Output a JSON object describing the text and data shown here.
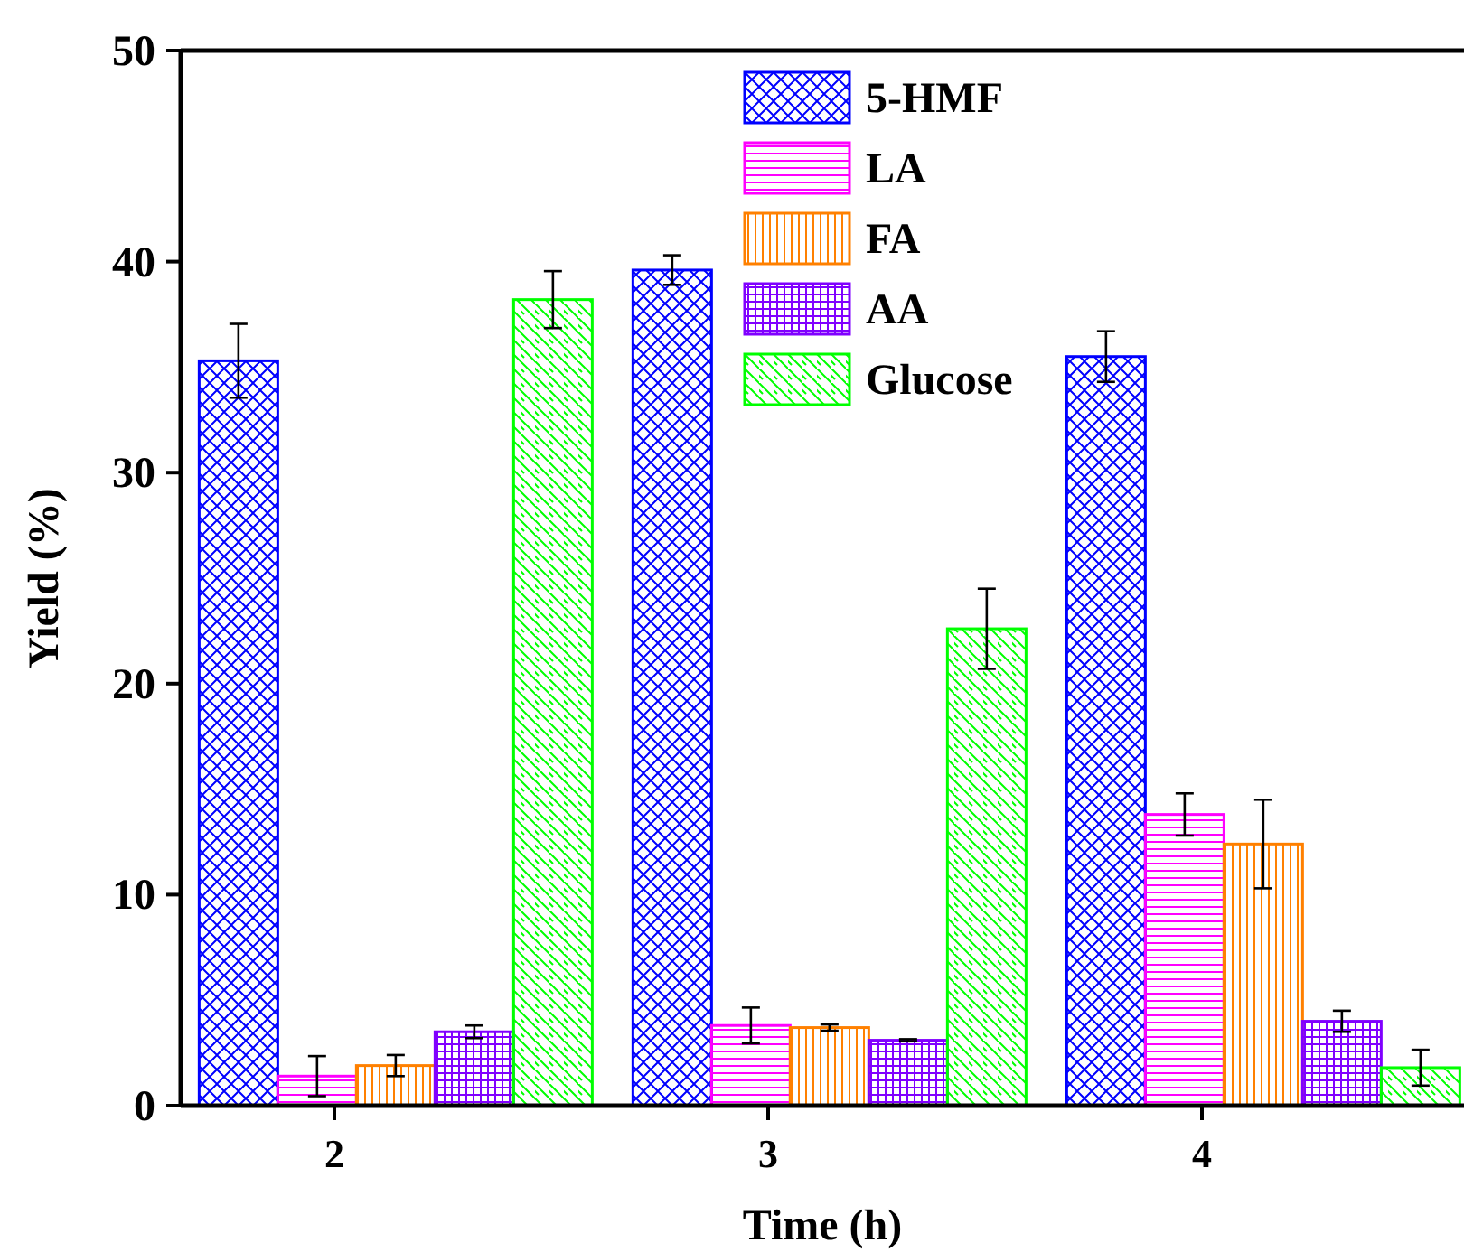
{
  "chart_data": {
    "type": "bar",
    "xlabel": "Time (h)",
    "ylabel": "Yield (%)",
    "categories": [
      "2",
      "3",
      "4"
    ],
    "ylim": [
      0,
      50
    ],
    "yticks": [
      0,
      10,
      20,
      30,
      40,
      50
    ],
    "legend": "top",
    "grid": false,
    "series": [
      {
        "name": "5-HMF",
        "color": "#0000ff",
        "values": [
          35.3,
          39.6,
          35.5
        ],
        "errors": [
          1.75,
          0.7,
          1.2
        ]
      },
      {
        "name": "LA",
        "color": "#ff00ff",
        "values": [
          1.4,
          3.8,
          13.8
        ],
        "errors": [
          0.95,
          0.85,
          1.0
        ]
      },
      {
        "name": "FA",
        "color": "#ff8000",
        "values": [
          1.9,
          3.7,
          12.4
        ],
        "errors": [
          0.5,
          0.15,
          2.1
        ]
      },
      {
        "name": "AA",
        "color": "#8000ff",
        "values": [
          3.5,
          3.1,
          4.0
        ],
        "errors": [
          0.3,
          0.05,
          0.5
        ]
      },
      {
        "name": "Glucose",
        "color": "#00ff00",
        "values": [
          38.2,
          22.6,
          1.8
        ],
        "errors": [
          1.35,
          1.9,
          0.85
        ]
      }
    ]
  }
}
